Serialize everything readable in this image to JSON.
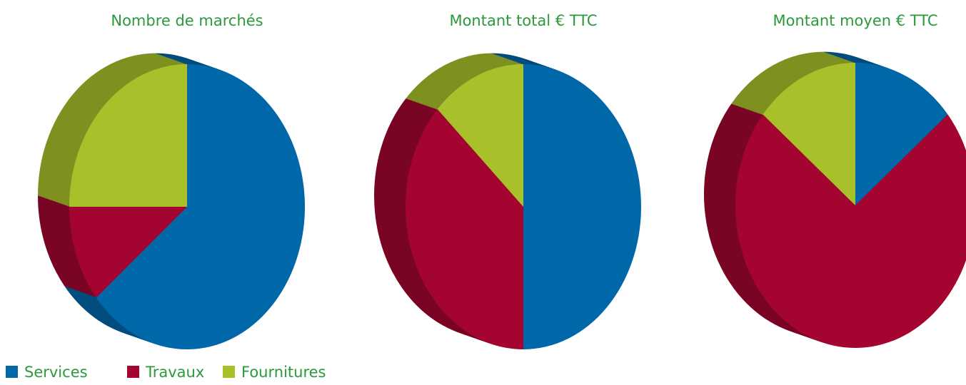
{
  "chart_data": [
    {
      "type": "pie",
      "title": "Nombre de marchés",
      "values": [
        64,
        11,
        25
      ]
    },
    {
      "type": "pie",
      "title": "Montant total € TTC",
      "values": [
        50,
        37,
        13
      ]
    },
    {
      "type": "pie",
      "title": "Montant moyen € TTC",
      "values": [
        14,
        72,
        14
      ]
    }
  ],
  "legend": {
    "categories": [
      "Services",
      "Travaux",
      "Fournitures"
    ],
    "colors": [
      "#0067a8",
      "#a30530",
      "#a8c12a"
    ]
  }
}
